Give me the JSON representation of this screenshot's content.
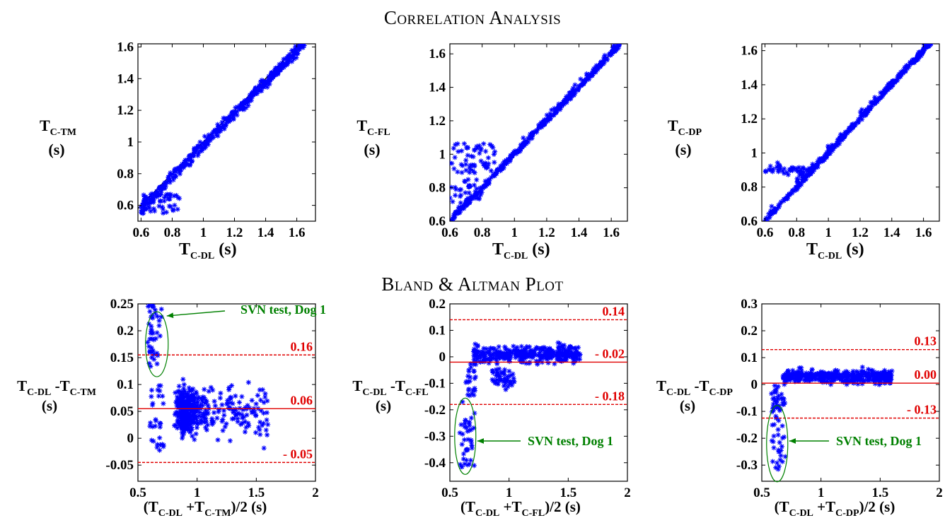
{
  "titles": {
    "correlation": "Correlation Analysis",
    "bland_altman": "Bland & Altman Plot"
  },
  "colors": {
    "points": "#0000ff",
    "identity_line": "#000000",
    "limits": "#e00000",
    "annotation": "#008000"
  },
  "chart_data": [
    {
      "type": "scatter",
      "id": "corr-tm",
      "ylabel_main": "T",
      "ylabel_sub": "C-TM",
      "ylabel_unit": "(s)",
      "xlabel_main": "T",
      "xlabel_sub": "C-DL",
      "xlabel_unit": "(s)",
      "xlim": [
        0.58,
        1.72
      ],
      "ylim": [
        0.5,
        1.62
      ],
      "xticks": [
        "0.6",
        "0.8",
        "1",
        "1.2",
        "1.4",
        "1.6"
      ],
      "yticks": [
        "0.6",
        "0.8",
        "1",
        "1.2",
        "1.4",
        "1.6"
      ],
      "identity_line": true
    },
    {
      "type": "scatter",
      "id": "corr-fl",
      "ylabel_main": "T",
      "ylabel_sub": "C-FL",
      "ylabel_unit": "(s)",
      "xlabel_main": "T",
      "xlabel_sub": "C-DL",
      "xlabel_unit": "(s)",
      "xlim": [
        0.6,
        1.7
      ],
      "ylim": [
        0.6,
        1.66
      ],
      "xticks": [
        "0.6",
        "0.8",
        "1",
        "1.2",
        "1.4",
        "1.6"
      ],
      "yticks": [
        "0.6",
        "0.8",
        "1",
        "1.2",
        "1.4",
        "1.6"
      ],
      "identity_line": true
    },
    {
      "type": "scatter",
      "id": "corr-dp",
      "ylabel_main": "T",
      "ylabel_sub": "C-DP",
      "ylabel_unit": "(s)",
      "xlabel_main": "T",
      "xlabel_sub": "C-DL",
      "xlabel_unit": "(s)",
      "xlim": [
        0.58,
        1.7
      ],
      "ylim": [
        0.6,
        1.64
      ],
      "xticks": [
        "0.6",
        "0.8",
        "1",
        "1.2",
        "1.4",
        "1.6"
      ],
      "yticks": [
        "0.6",
        "0.8",
        "1",
        "1.2",
        "1.4",
        "1.6"
      ],
      "identity_line": true
    },
    {
      "type": "scatter",
      "id": "ba-tm",
      "ylabel_main": "T",
      "ylabel_sub": "C-DL",
      "ylabel_mid": "-T",
      "ylabel_sub2": "C-TM",
      "ylabel_unit": "(s)",
      "xlabel_main": "(T",
      "xlabel_sub": "C-DL",
      "xlabel_mid": "+T",
      "xlabel_sub2": "C-TM",
      "xlabel_tail": ")/2",
      "xlabel_unit": "(s)",
      "xlim": [
        0.5,
        2.0
      ],
      "ylim": [
        -0.08,
        0.25
      ],
      "xticks": [
        "0.5",
        "1",
        "1.5",
        "2"
      ],
      "yticks": [
        "-0.05",
        "0",
        "0.05",
        "0.1",
        "0.15",
        "0.2",
        "0.25"
      ],
      "limits": [
        {
          "value": 0.155,
          "label": "0.16",
          "style": "dashed"
        },
        {
          "value": 0.055,
          "label": "0.06",
          "style": "solid"
        },
        {
          "value": -0.045,
          "label": "- 0.05",
          "style": "dashed"
        }
      ],
      "annotation": "SVN test, Dog 1"
    },
    {
      "type": "scatter",
      "id": "ba-fl",
      "ylabel_main": "T",
      "ylabel_sub": "C-DL",
      "ylabel_mid": "-T",
      "ylabel_sub2": "C-FL",
      "ylabel_unit": "(s)",
      "xlabel_main": "(T",
      "xlabel_sub": "C-DL",
      "xlabel_mid": "+T",
      "xlabel_sub2": "C-FL",
      "xlabel_tail": ")/2",
      "xlabel_unit": "(s)",
      "xlim": [
        0.5,
        2.0
      ],
      "ylim": [
        -0.47,
        0.2
      ],
      "xticks": [
        "0.5",
        "1",
        "1.5",
        "2"
      ],
      "yticks": [
        "-0.4",
        "-0.3",
        "-0.2",
        "-0.1",
        "0",
        "0.1",
        "0.2"
      ],
      "limits": [
        {
          "value": 0.14,
          "label": "0.14",
          "style": "dashed"
        },
        {
          "value": -0.02,
          "label": "- 0.02",
          "style": "solid"
        },
        {
          "value": -0.18,
          "label": "- 0.18",
          "style": "dashed"
        }
      ],
      "annotation": "SVN test, Dog 1"
    },
    {
      "type": "scatter",
      "id": "ba-dp",
      "ylabel_main": "T",
      "ylabel_sub": "C-DL",
      "ylabel_mid": "-T",
      "ylabel_sub2": "C-DP",
      "ylabel_unit": "(s)",
      "xlabel_main": "(T",
      "xlabel_sub": "C-DL",
      "xlabel_mid": "+T",
      "xlabel_sub2": "C-DP",
      "xlabel_tail": ")/2",
      "xlabel_unit": "(s)",
      "xlim": [
        0.5,
        2.0
      ],
      "ylim": [
        -0.36,
        0.3
      ],
      "xticks": [
        "0.5",
        "1",
        "1.5",
        "2"
      ],
      "yticks": [
        "-0.3",
        "-0.2",
        "-0.1",
        "0",
        "0.1",
        "0.2",
        "0.3"
      ],
      "limits": [
        {
          "value": 0.13,
          "label": "0.13",
          "style": "dashed"
        },
        {
          "value": 0.005,
          "label": "0.00",
          "style": "solid"
        },
        {
          "value": -0.125,
          "label": "- 0.13",
          "style": "dashed"
        }
      ],
      "annotation": "SVN test, Dog 1"
    }
  ]
}
